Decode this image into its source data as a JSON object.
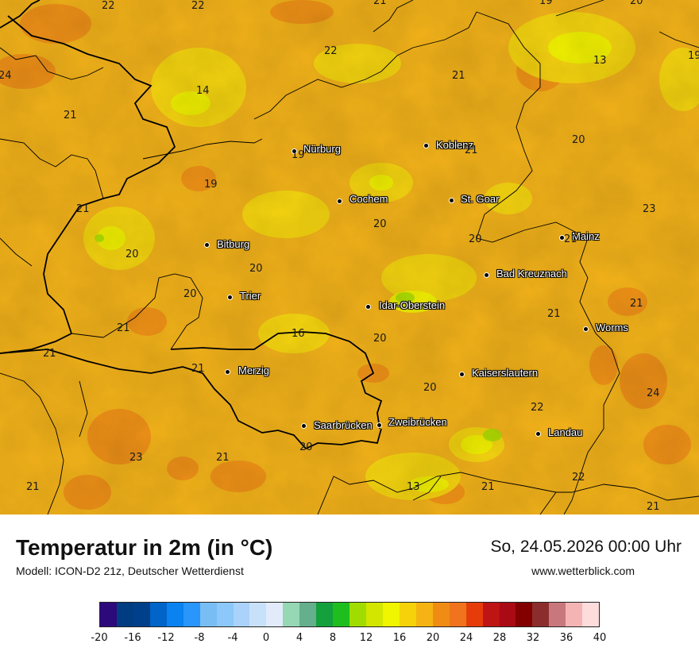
{
  "map": {
    "cities": [
      {
        "name": "Nürburg"
      },
      {
        "name": "Koblenz"
      },
      {
        "name": "Cochem"
      },
      {
        "name": "St. Goar"
      },
      {
        "name": "Bitburg"
      },
      {
        "name": "Mainz"
      },
      {
        "name": "Bad Kreuznach"
      },
      {
        "name": "Trier"
      },
      {
        "name": "Idar-Oberstein"
      },
      {
        "name": "Worms"
      },
      {
        "name": "Merzig"
      },
      {
        "name": "Kaiserslautern"
      },
      {
        "name": "Saarbrücken"
      },
      {
        "name": "Zweibrücken"
      },
      {
        "name": "Landau"
      }
    ],
    "values": [
      "22",
      "22",
      "21",
      "19",
      "20",
      "24",
      "21",
      "14",
      "22",
      "21",
      "13",
      "19",
      "21",
      "20",
      "21",
      "19",
      "19",
      "20",
      "23",
      "20",
      "20",
      "21",
      "20",
      "20",
      "21",
      "21",
      "21",
      "16",
      "20",
      "21",
      "21",
      "20",
      "24",
      "22",
      "23",
      "21",
      "20",
      "21",
      "13",
      "21",
      "22",
      "21"
    ]
  },
  "footer": {
    "title": "Temperatur in 2m (in °C)",
    "model": "Modell: ICON-D2 21z, Deutscher Wetterdienst",
    "datetime": "So, 24.05.2026 00:00 Uhr",
    "site": "www.wetterblick.com"
  },
  "legend": {
    "colors": [
      "#2d0a7c",
      "#003c82",
      "#00408a",
      "#0064c8",
      "#0a82f0",
      "#2896fa",
      "#78bef5",
      "#8cc8fa",
      "#aad2fa",
      "#c8e1fa",
      "#e1ebfa",
      "#96d7b4",
      "#64af8c",
      "#14a03c",
      "#1ebe1e",
      "#a0dc00",
      "#d2e600",
      "#f0f500",
      "#f5d20a",
      "#f5b414",
      "#f08c14",
      "#f0731e",
      "#e63c0a",
      "#be1414",
      "#aa0a14",
      "#820000",
      "#8c2d2d",
      "#c8787d",
      "#f5b4b4",
      "#ffdcdc"
    ],
    "ticks": [
      "-20",
      "-16",
      "-12",
      "-8",
      "-4",
      "0",
      "4",
      "8",
      "12",
      "16",
      "20",
      "24",
      "28",
      "32",
      "36",
      "40"
    ]
  }
}
